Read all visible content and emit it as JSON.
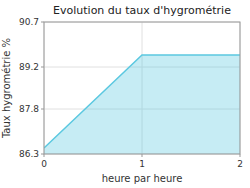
{
  "chart_data": {
    "type": "area",
    "title": "Evolution du taux d'hygrométrie",
    "xlabel": "heure par heure",
    "ylabel": "Taux hygrométrie %",
    "x": [
      0,
      1,
      2
    ],
    "values": [
      86.5,
      89.6,
      89.6
    ],
    "color": "#5bc8e0",
    "xlim": [
      0,
      2
    ],
    "ylim": [
      86.3,
      90.7
    ],
    "xticks": [
      0,
      1,
      2
    ],
    "yticks": [
      86.3,
      87.8,
      89.2,
      90.7
    ],
    "grid": true
  }
}
